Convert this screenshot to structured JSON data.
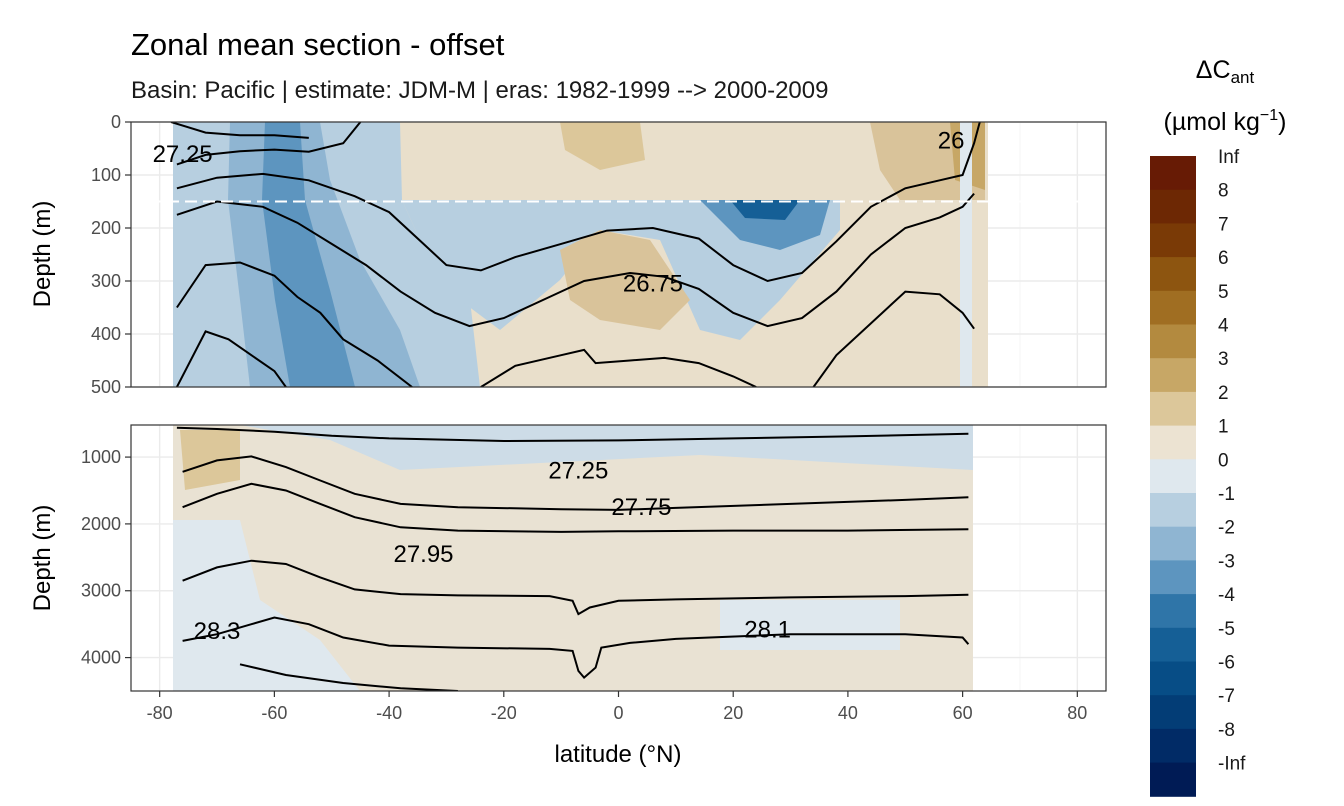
{
  "chart_data": {
    "type": "heatmap",
    "title": "Zonal mean section - offset",
    "subtitle": "Basin: Pacific | estimate: JDM-M | eras: 1982-1999 --> 2000-2009",
    "xlabel": "latitude (°N)",
    "ylabel": "Depth (m)",
    "xlim": [
      -85,
      85
    ],
    "x_ticks": [
      -80,
      -60,
      -40,
      -20,
      0,
      20,
      40,
      60,
      80
    ],
    "x_tick_labels": [
      "-80",
      "-60",
      "-40",
      "-20",
      "0",
      "20",
      "40",
      "60",
      "80"
    ],
    "panels": [
      {
        "name": "upper",
        "ylim": [
          0,
          500
        ],
        "y_ticks": [
          0,
          100,
          200,
          300,
          400,
          500
        ],
        "y_tick_labels": [
          "0",
          "100",
          "200",
          "300",
          "400",
          "500"
        ],
        "mixed_layer_line_depth": 150,
        "contour_labels": [
          {
            "text": "27.25",
            "lat": -76,
            "depth": 60
          },
          {
            "text": "26.75",
            "lat": 6,
            "depth": 305
          },
          {
            "text": "26",
            "lat": 58,
            "depth": 35
          }
        ],
        "isopycnals": [
          [
            [
              -78,
              0
            ],
            [
              -72,
              20
            ],
            [
              -66,
              25
            ],
            [
              -60,
              25
            ],
            [
              -54,
              30
            ]
          ],
          [
            [
              -77,
              80
            ],
            [
              -72,
              62
            ],
            [
              -66,
              55
            ],
            [
              -60,
              52
            ],
            [
              -54,
              56
            ],
            [
              -48,
              40
            ],
            [
              -45,
              0
            ]
          ],
          [
            [
              -77,
              125
            ],
            [
              -70,
              105
            ],
            [
              -62,
              98
            ],
            [
              -54,
              110
            ],
            [
              -46,
              140
            ],
            [
              -40,
              170
            ],
            [
              -34,
              230
            ],
            [
              -30,
              270
            ],
            [
              -24,
              280
            ],
            [
              -18,
              255
            ],
            [
              -10,
              230
            ],
            [
              -2,
              205
            ],
            [
              6,
              200
            ],
            [
              14,
              220
            ],
            [
              20,
              270
            ],
            [
              26,
              300
            ],
            [
              32,
              285
            ],
            [
              38,
              225
            ],
            [
              44,
              160
            ],
            [
              50,
              125
            ],
            [
              56,
              110
            ],
            [
              60,
              100
            ],
            [
              62,
              40
            ],
            [
              63,
              0
            ]
          ],
          [
            [
              -77,
              175
            ],
            [
              -70,
              150
            ],
            [
              -62,
              160
            ],
            [
              -56,
              190
            ],
            [
              -50,
              230
            ],
            [
              -44,
              270
            ],
            [
              -38,
              320
            ],
            [
              -32,
              360
            ],
            [
              -26,
              385
            ],
            [
              -20,
              370
            ],
            [
              -12,
              330
            ],
            [
              -6,
              300
            ],
            [
              2,
              285
            ],
            [
              8,
              292
            ],
            [
              14,
              315
            ],
            [
              20,
              360
            ],
            [
              26,
              385
            ],
            [
              32,
              370
            ],
            [
              38,
              320
            ],
            [
              44,
              250
            ],
            [
              50,
              200
            ],
            [
              56,
              180
            ],
            [
              60,
              160
            ],
            [
              62,
              135
            ]
          ],
          [
            [
              -77,
              350
            ],
            [
              -72,
              270
            ],
            [
              -66,
              265
            ],
            [
              -60,
              290
            ],
            [
              -56,
              330
            ],
            [
              -52,
              360
            ],
            [
              -48,
              410
            ],
            [
              -42,
              450
            ],
            [
              -36,
              500
            ]
          ],
          [
            [
              -77,
              500
            ],
            [
              -72,
              395
            ],
            [
              -68,
              410
            ],
            [
              -64,
              440
            ],
            [
              -60,
              470
            ],
            [
              -58,
              500
            ]
          ],
          [
            [
              -24,
              500
            ],
            [
              -18,
              460
            ],
            [
              -10,
              440
            ],
            [
              -6,
              430
            ],
            [
              -4,
              455
            ],
            [
              2,
              450
            ],
            [
              8,
              445
            ],
            [
              14,
              455
            ],
            [
              20,
              480
            ],
            [
              24,
              500
            ]
          ],
          [
            [
              34,
              500
            ],
            [
              38,
              440
            ],
            [
              44,
              380
            ],
            [
              50,
              320
            ],
            [
              56,
              325
            ],
            [
              60,
              360
            ],
            [
              62,
              390
            ]
          ]
        ]
      },
      {
        "name": "lower",
        "ylim": [
          520,
          4500
        ],
        "y_ticks": [
          1000,
          2000,
          3000,
          4000
        ],
        "y_tick_labels": [
          "1000",
          "2000",
          "3000",
          "4000"
        ],
        "contour_labels": [
          {
            "text": "27.25",
            "lat": -7,
            "depth": 1200
          },
          {
            "text": "27.75",
            "lat": 4,
            "depth": 1750
          },
          {
            "text": "27.95",
            "lat": -34,
            "depth": 2450
          },
          {
            "text": "28.3",
            "lat": -70,
            "depth": 3600
          },
          {
            "text": "28.1",
            "lat": 26,
            "depth": 3580
          }
        ],
        "isopycnals": [
          [
            [
              -77,
              560
            ],
            [
              -70,
              580
            ],
            [
              -60,
              620
            ],
            [
              -50,
              680
            ],
            [
              -40,
              720
            ],
            [
              -20,
              760
            ],
            [
              0,
              750
            ],
            [
              20,
              720
            ],
            [
              40,
              690
            ],
            [
              61,
              650
            ]
          ],
          [
            [
              -76,
              1220
            ],
            [
              -70,
              1050
            ],
            [
              -64,
              990
            ],
            [
              -58,
              1150
            ],
            [
              -52,
              1350
            ],
            [
              -46,
              1550
            ],
            [
              -38,
              1700
            ],
            [
              -28,
              1750
            ],
            [
              -10,
              1780
            ],
            [
              0,
              1790
            ],
            [
              10,
              1760
            ],
            [
              30,
              1700
            ],
            [
              50,
              1640
            ],
            [
              61,
              1600
            ]
          ],
          [
            [
              -76,
              1750
            ],
            [
              -70,
              1550
            ],
            [
              -64,
              1400
            ],
            [
              -58,
              1500
            ],
            [
              -52,
              1700
            ],
            [
              -46,
              1900
            ],
            [
              -38,
              2050
            ],
            [
              -28,
              2100
            ],
            [
              -10,
              2120
            ],
            [
              0,
              2110
            ],
            [
              20,
              2100
            ],
            [
              40,
              2100
            ],
            [
              61,
              2080
            ]
          ],
          [
            [
              -76,
              2850
            ],
            [
              -70,
              2650
            ],
            [
              -64,
              2550
            ],
            [
              -58,
              2600
            ],
            [
              -52,
              2800
            ],
            [
              -46,
              2980
            ],
            [
              -38,
              3050
            ],
            [
              -28,
              3070
            ],
            [
              -12,
              3080
            ],
            [
              -8,
              3150
            ],
            [
              -7,
              3350
            ],
            [
              -5,
              3250
            ],
            [
              0,
              3150
            ],
            [
              10,
              3130
            ],
            [
              30,
              3100
            ],
            [
              50,
              3080
            ],
            [
              61,
              3060
            ]
          ],
          [
            [
              -76,
              3750
            ],
            [
              -70,
              3650
            ],
            [
              -64,
              3500
            ],
            [
              -60,
              3400
            ],
            [
              -54,
              3500
            ],
            [
              -48,
              3700
            ],
            [
              -40,
              3820
            ],
            [
              -28,
              3850
            ],
            [
              -12,
              3870
            ],
            [
              -8,
              3900
            ],
            [
              -7,
              4200
            ],
            [
              -6,
              4300
            ],
            [
              -4,
              4150
            ],
            [
              -3,
              3850
            ],
            [
              2,
              3780
            ],
            [
              10,
              3720
            ],
            [
              30,
              3650
            ],
            [
              50,
              3650
            ],
            [
              60,
              3700
            ],
            [
              61,
              3800
            ]
          ],
          [
            [
              -66,
              4100
            ],
            [
              -58,
              4260
            ],
            [
              -48,
              4380
            ],
            [
              -38,
              4460
            ],
            [
              -28,
              4500
            ]
          ]
        ]
      }
    ],
    "legend": {
      "title_main": "ΔC",
      "title_sub": "ant",
      "units_prefix": "(µmol kg",
      "units_sup": "−1",
      "units_suffix": ")",
      "bins": [
        {
          "label": "Inf",
          "color": "#671b05"
        },
        {
          "label": "8",
          "color": "#6d2804"
        },
        {
          "label": "7",
          "color": "#7a3a06"
        },
        {
          "label": "6",
          "color": "#8d5510"
        },
        {
          "label": "5",
          "color": "#a06e22"
        },
        {
          "label": "4",
          "color": "#b38a3f"
        },
        {
          "label": "3",
          "color": "#c7a766"
        },
        {
          "label": "2",
          "color": "#dcc79a"
        },
        {
          "label": "1",
          "color": "#ece3d2"
        },
        {
          "label": "0",
          "color": "#dfe8ee"
        },
        {
          "label": "-1",
          "color": "#b7cfe0"
        },
        {
          "label": "-2",
          "color": "#8fb5d2"
        },
        {
          "label": "-3",
          "color": "#5d95bf"
        },
        {
          "label": "-4",
          "color": "#2f75a8"
        },
        {
          "label": "-5",
          "color": "#155f96"
        },
        {
          "label": "-6",
          "color": "#074d86"
        },
        {
          "label": "-7",
          "color": "#033d76"
        },
        {
          "label": "-8",
          "color": "#012b66"
        },
        {
          "label": "-Inf",
          "color": "#001b55"
        }
      ]
    }
  }
}
